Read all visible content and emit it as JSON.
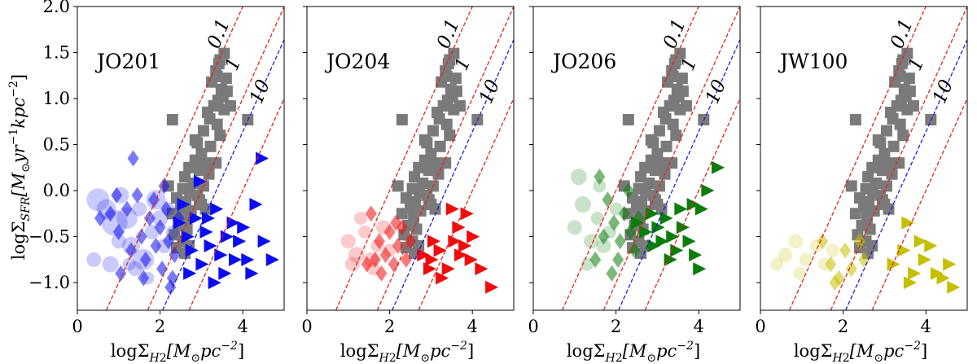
{
  "chart_data": {
    "type": "scatter",
    "ylabel": "logΣ_SFR[M_⊙yr^-1kpc^-2]",
    "xlabel": "logΣ_H2[M_⊙pc^-2]",
    "xlim": [
      0,
      5.0
    ],
    "ylim": [
      -1.3,
      2.0
    ],
    "xticks": [
      0,
      2,
      4
    ],
    "yticks": [
      -1.0,
      -0.5,
      0.0,
      0.5,
      1.0,
      1.5,
      2.0
    ],
    "ytick_labels": [
      "−1.0",
      "−0.5",
      "0.0",
      "0.5",
      "1.0",
      "1.5",
      "2.0"
    ],
    "reference_lines": [
      {
        "label": "0.1",
        "color": "#e3231b",
        "style": "dashed",
        "log_tdep_gyr": -1
      },
      {
        "label": "1",
        "color": "#e3231b",
        "style": "dashed",
        "log_tdep_gyr": 0
      },
      {
        "label": "",
        "color": "#1d1dd6",
        "style": "dashed",
        "log_tdep_gyr": 0.36
      },
      {
        "label": "10",
        "color": "#e3231b",
        "style": "dashed",
        "log_tdep_gyr": 1
      }
    ],
    "gray_squares": [
      [
        3.55,
        1.49
      ],
      [
        3.45,
        1.42
      ],
      [
        3.42,
        1.38
      ],
      [
        3.35,
        1.3
      ],
      [
        3.38,
        1.24
      ],
      [
        3.25,
        1.18
      ],
      [
        3.6,
        1.22
      ],
      [
        3.48,
        1.1
      ],
      [
        3.52,
        1.02
      ],
      [
        3.4,
        0.98
      ],
      [
        3.62,
        1.08
      ],
      [
        3.3,
        0.92
      ],
      [
        3.15,
        0.85
      ],
      [
        3.55,
        0.88
      ],
      [
        3.7,
        0.92
      ],
      [
        2.3,
        0.77
      ],
      [
        3.2,
        0.78
      ],
      [
        3.38,
        0.72
      ],
      [
        3.05,
        0.65
      ],
      [
        3.45,
        0.6
      ],
      [
        4.12,
        0.77
      ],
      [
        2.9,
        0.52
      ],
      [
        3.22,
        0.48
      ],
      [
        3.0,
        0.4
      ],
      [
        2.85,
        0.33
      ],
      [
        3.1,
        0.3
      ],
      [
        2.7,
        0.25
      ],
      [
        2.95,
        0.22
      ],
      [
        3.18,
        0.18
      ],
      [
        2.6,
        0.15
      ],
      [
        2.8,
        0.08
      ],
      [
        3.05,
        0.05
      ],
      [
        2.55,
        0.02
      ],
      [
        2.72,
        -0.02
      ],
      [
        2.9,
        -0.05
      ],
      [
        2.4,
        -0.08
      ],
      [
        2.62,
        -0.12
      ],
      [
        3.0,
        -0.15
      ],
      [
        2.5,
        -0.18
      ],
      [
        2.75,
        -0.22
      ],
      [
        2.3,
        -0.25
      ],
      [
        2.58,
        -0.3
      ],
      [
        2.45,
        -0.38
      ],
      [
        2.65,
        -0.42
      ],
      [
        2.35,
        -0.48
      ],
      [
        2.55,
        -0.55
      ],
      [
        2.7,
        -0.6
      ],
      [
        2.4,
        -0.62
      ],
      [
        2.6,
        -0.68
      ],
      [
        2.95,
        -0.1
      ],
      [
        3.1,
        -0.2
      ],
      [
        2.2,
        0.05
      ],
      [
        2.85,
        0.55
      ],
      [
        3.35,
        0.3
      ]
    ],
    "panels": [
      {
        "name": "JO201",
        "color": "#0c0cf0",
        "circles": [
          [
            0.5,
            -0.1,
            14
          ],
          [
            0.7,
            -0.2,
            12
          ],
          [
            0.9,
            -0.35,
            16
          ],
          [
            1.05,
            -0.05,
            10
          ],
          [
            1.2,
            -0.3,
            13
          ],
          [
            1.3,
            -0.6,
            11
          ],
          [
            1.5,
            -0.2,
            9
          ],
          [
            1.6,
            -0.75,
            13
          ],
          [
            1.8,
            -0.45,
            9
          ],
          [
            1.9,
            -0.1,
            12
          ],
          [
            2.0,
            -0.3,
            10
          ],
          [
            2.1,
            -0.6,
            9
          ],
          [
            2.2,
            -0.2,
            8
          ],
          [
            0.4,
            -0.75,
            9
          ],
          [
            0.8,
            -0.8,
            10
          ],
          [
            1.4,
            -0.85,
            9
          ],
          [
            1.7,
            -0.95,
            8
          ],
          [
            1.0,
            -0.55,
            9
          ],
          [
            2.3,
            -0.45,
            8
          ],
          [
            1.25,
            -0.8,
            8
          ]
        ],
        "diamonds": [
          [
            0.55,
            -0.3
          ],
          [
            0.8,
            -0.25
          ],
          [
            1.0,
            -0.45
          ],
          [
            1.2,
            -0.2
          ],
          [
            1.35,
            0.35
          ],
          [
            1.45,
            -0.05
          ],
          [
            1.55,
            -0.5
          ],
          [
            1.65,
            -0.75
          ],
          [
            1.75,
            -0.3
          ],
          [
            1.85,
            -0.1
          ],
          [
            1.9,
            -0.6
          ],
          [
            2.0,
            -0.4
          ],
          [
            2.05,
            -0.85
          ],
          [
            2.15,
            -0.2
          ],
          [
            2.2,
            -0.55
          ],
          [
            2.25,
            -1.05
          ],
          [
            2.35,
            -0.7
          ],
          [
            1.05,
            -0.9
          ],
          [
            1.3,
            -0.65
          ],
          [
            2.1,
            0.05
          ],
          [
            1.6,
            -0.95
          ],
          [
            2.45,
            -0.3
          ],
          [
            0.95,
            -0.05
          ],
          [
            2.3,
            -0.95
          ]
        ],
        "triangles": [
          [
            2.45,
            -0.35
          ],
          [
            2.55,
            -0.15
          ],
          [
            2.65,
            -0.5
          ],
          [
            2.75,
            -0.65
          ],
          [
            2.85,
            -0.3
          ],
          [
            3.0,
            -0.8
          ],
          [
            3.1,
            -0.45
          ],
          [
            3.2,
            -0.6
          ],
          [
            3.35,
            -0.2
          ],
          [
            3.45,
            -0.7
          ],
          [
            3.6,
            -0.5
          ],
          [
            3.75,
            -0.35
          ],
          [
            3.9,
            -0.55
          ],
          [
            4.1,
            -0.75
          ],
          [
            4.3,
            -0.15
          ],
          [
            4.45,
            0.35
          ],
          [
            4.5,
            -0.55
          ],
          [
            4.2,
            -0.9
          ],
          [
            3.3,
            -1.0
          ],
          [
            2.95,
            0.1
          ],
          [
            3.8,
            -0.75
          ],
          [
            4.7,
            -0.75
          ],
          [
            3.55,
            -0.9
          ],
          [
            2.7,
            -0.9
          ],
          [
            3.15,
            -0.3
          ],
          [
            4.0,
            -0.4
          ]
        ]
      },
      {
        "name": "JO204",
        "color": "#f00c0c",
        "circles": [
          [
            1.0,
            -0.55,
            9
          ],
          [
            1.2,
            -0.7,
            10
          ],
          [
            1.4,
            -0.45,
            8
          ],
          [
            1.55,
            -0.75,
            9
          ],
          [
            1.7,
            -0.6,
            8
          ],
          [
            1.85,
            -0.4,
            9
          ],
          [
            2.0,
            -0.65,
            8
          ],
          [
            1.3,
            -0.3,
            8
          ],
          [
            1.1,
            -0.8,
            9
          ],
          [
            1.6,
            -0.85,
            8
          ]
        ],
        "diamonds": [
          [
            1.55,
            -0.25
          ],
          [
            1.75,
            -0.55
          ],
          [
            1.9,
            -0.7
          ],
          [
            2.0,
            -0.45
          ],
          [
            2.1,
            -0.8
          ],
          [
            2.2,
            -0.6
          ],
          [
            2.3,
            -0.4
          ],
          [
            2.4,
            -0.75
          ],
          [
            1.65,
            -0.75
          ],
          [
            1.45,
            -0.8
          ],
          [
            2.5,
            -0.55
          ],
          [
            2.15,
            -0.35
          ],
          [
            1.8,
            -0.9
          ]
        ],
        "triangles": [
          [
            2.8,
            -0.7
          ],
          [
            3.0,
            -0.75
          ],
          [
            3.2,
            -0.65
          ],
          [
            3.4,
            -0.85
          ],
          [
            3.55,
            -0.55
          ],
          [
            3.65,
            -0.4
          ],
          [
            3.8,
            -0.6
          ],
          [
            3.95,
            -0.75
          ],
          [
            3.5,
            -0.2
          ],
          [
            3.85,
            -0.25
          ],
          [
            4.0,
            -0.5
          ],
          [
            4.2,
            -0.85
          ],
          [
            3.25,
            -0.95
          ],
          [
            3.05,
            -0.55
          ],
          [
            4.45,
            -1.05
          ],
          [
            3.7,
            -0.7
          ],
          [
            2.95,
            -0.85
          ]
        ]
      },
      {
        "name": "JO206",
        "color": "#0b7d0b",
        "circles": [
          [
            1.0,
            -0.4,
            9
          ],
          [
            1.2,
            -0.15,
            10
          ],
          [
            1.1,
            0.15,
            10
          ],
          [
            1.4,
            -0.55,
            9
          ],
          [
            1.55,
            -0.3,
            8
          ],
          [
            1.7,
            -0.6,
            9
          ],
          [
            1.3,
            -0.8,
            8
          ],
          [
            1.85,
            -0.45,
            8
          ],
          [
            2.0,
            -0.2,
            8
          ],
          [
            1.6,
            0.05,
            8
          ]
        ],
        "diamonds": [
          [
            1.6,
            0.15
          ],
          [
            1.8,
            -0.1
          ],
          [
            1.95,
            -0.35
          ],
          [
            2.1,
            -0.55
          ],
          [
            2.2,
            -0.25
          ],
          [
            2.35,
            -0.45
          ],
          [
            2.45,
            -0.65
          ],
          [
            1.7,
            -0.5
          ],
          [
            2.05,
            -0.75
          ],
          [
            2.55,
            -0.3
          ],
          [
            1.5,
            -0.75
          ],
          [
            2.3,
            0.0
          ],
          [
            1.9,
            -0.9
          ]
        ],
        "triangles": [
          [
            2.5,
            -0.35
          ],
          [
            2.7,
            -0.45
          ],
          [
            2.85,
            -0.25
          ],
          [
            3.0,
            -0.4
          ],
          [
            3.1,
            -0.55
          ],
          [
            3.2,
            -0.3
          ],
          [
            3.35,
            -0.5
          ],
          [
            3.45,
            -0.65
          ],
          [
            3.6,
            -0.4
          ],
          [
            3.75,
            -0.55
          ],
          [
            3.9,
            -0.7
          ],
          [
            3.85,
            -0.15
          ],
          [
            4.05,
            -0.2
          ],
          [
            4.2,
            0.0
          ],
          [
            4.45,
            0.25
          ],
          [
            3.3,
            -0.75
          ],
          [
            2.9,
            -0.6
          ],
          [
            4.0,
            -0.85
          ],
          [
            3.55,
            -0.2
          ]
        ]
      },
      {
        "name": "JW100",
        "color": "#c4c000",
        "circles": [
          [
            0.6,
            -0.7,
            9
          ],
          [
            0.85,
            -0.55,
            9
          ],
          [
            1.1,
            -0.75,
            8
          ],
          [
            1.35,
            -0.6,
            8
          ],
          [
            0.95,
            -0.9,
            8
          ],
          [
            1.55,
            -0.8,
            8
          ],
          [
            1.75,
            -0.65,
            8
          ],
          [
            0.4,
            -0.8,
            8
          ]
        ],
        "diamonds": [
          [
            1.5,
            -0.55
          ],
          [
            1.7,
            -0.8
          ],
          [
            1.9,
            -0.95
          ],
          [
            2.05,
            -0.65
          ],
          [
            2.2,
            -0.85
          ],
          [
            2.4,
            -0.55
          ],
          [
            1.8,
            -1.0
          ],
          [
            2.5,
            -0.75
          ]
        ],
        "triangles": [
          [
            3.2,
            -0.8
          ],
          [
            3.45,
            -0.65
          ],
          [
            3.55,
            -0.35
          ],
          [
            3.7,
            -0.9
          ],
          [
            3.85,
            -0.55
          ],
          [
            3.95,
            -0.75
          ],
          [
            4.1,
            -0.6
          ],
          [
            4.25,
            -0.9
          ],
          [
            4.4,
            -0.95
          ],
          [
            4.55,
            -0.8
          ],
          [
            4.65,
            -1.05
          ],
          [
            3.6,
            -1.0
          ]
        ]
      }
    ]
  }
}
